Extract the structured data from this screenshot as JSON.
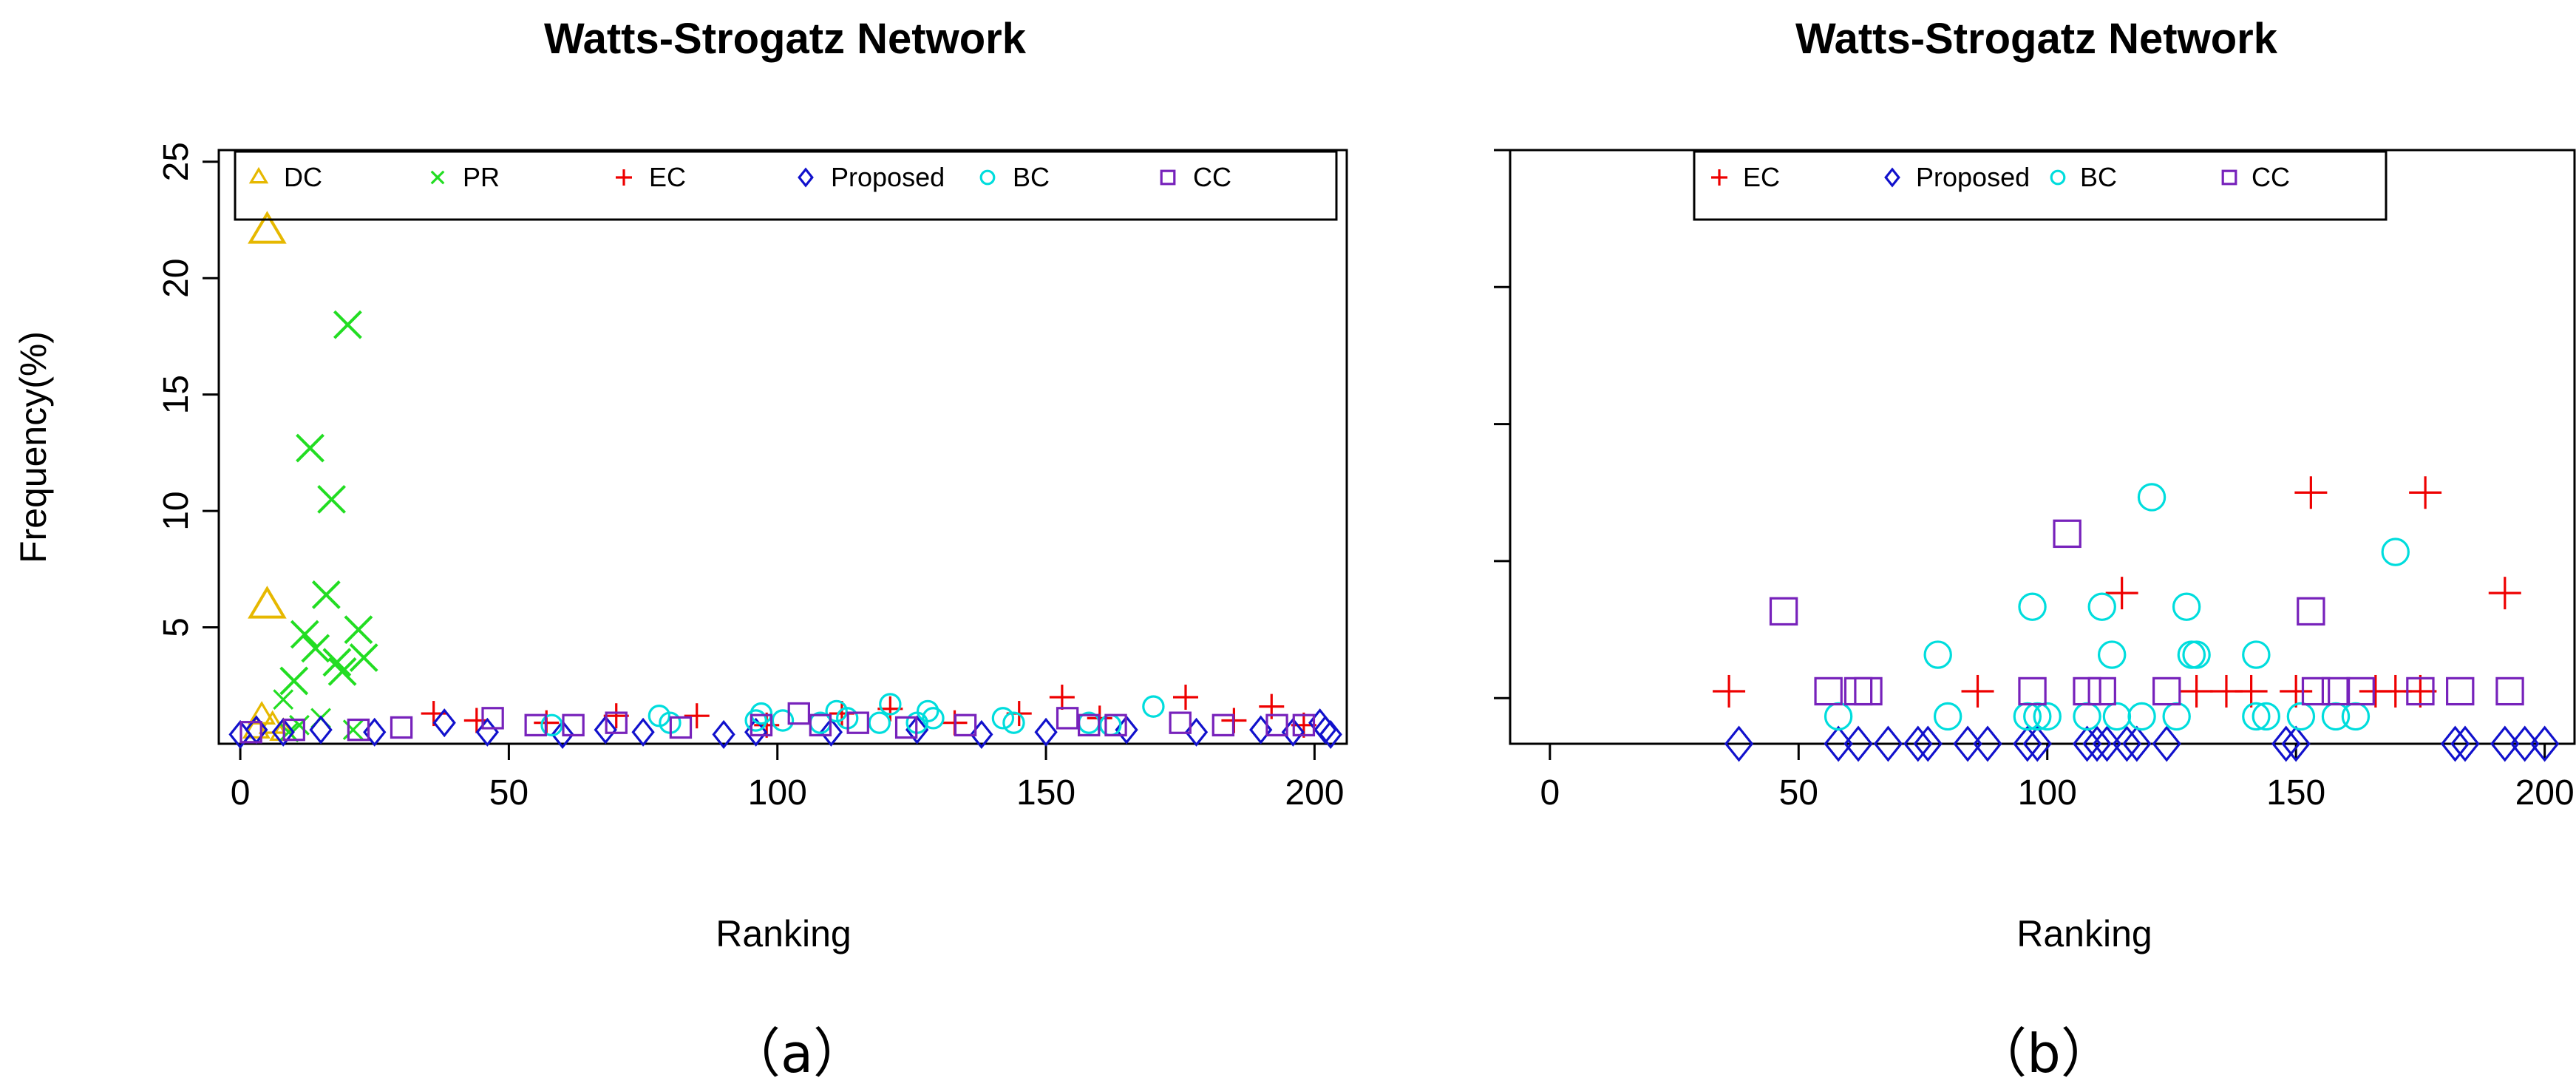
{
  "colors": {
    "DC": "#E6B800",
    "PR": "#22DD22",
    "EC": "#EE0000",
    "Proposed": "#1111CC",
    "BC": "#00DDDD",
    "CC": "#7722BB"
  },
  "chart_data": [
    {
      "type": "scatter",
      "title": "Watts-Strogatz Network",
      "xlabel": "Ranking",
      "ylabel": "Frequency(%)",
      "caption": "（a）",
      "xlim": [
        -4,
        206
      ],
      "ylim": [
        0,
        25.5
      ],
      "xticks": [
        0,
        50,
        100,
        150,
        200
      ],
      "yticks": [
        5,
        10,
        15,
        20,
        25
      ],
      "legend_position": "top",
      "legend": [
        "DC",
        "PR",
        "EC",
        "Proposed",
        "BC",
        "CC"
      ],
      "series": [
        {
          "name": "DC",
          "marker": "triangle",
          "x": [
            5,
            5,
            4,
            6,
            3,
            8
          ],
          "y": [
            22.0,
            5.9,
            1.2,
            0.8,
            0.6,
            0.5
          ]
        },
        {
          "name": "PR",
          "marker": "x",
          "x": [
            20,
            13,
            17,
            16,
            12,
            22,
            14,
            23,
            18,
            19,
            10,
            8,
            15,
            11,
            21,
            9
          ],
          "y": [
            18.0,
            12.7,
            10.5,
            6.4,
            4.7,
            4.9,
            4.1,
            3.7,
            3.5,
            3.1,
            2.7,
            1.9,
            1.1,
            0.8,
            0.6,
            0.5
          ]
        },
        {
          "name": "EC",
          "marker": "plus",
          "x": [
            36,
            44,
            57,
            70,
            85,
            98,
            112,
            121,
            133,
            145,
            153,
            160,
            176,
            185,
            192,
            198
          ],
          "y": [
            1.3,
            1.0,
            0.9,
            1.2,
            1.2,
            0.8,
            1.3,
            1.5,
            0.9,
            1.3,
            2.0,
            1.1,
            2.0,
            1.0,
            1.6,
            0.8
          ]
        },
        {
          "name": "Proposed",
          "marker": "diamond",
          "x": [
            0,
            3,
            8,
            15,
            25,
            38,
            46,
            60,
            68,
            75,
            90,
            96,
            110,
            126,
            138,
            150,
            165,
            178,
            190,
            196,
            201,
            202,
            203
          ],
          "y": [
            0.4,
            0.6,
            0.5,
            0.6,
            0.5,
            0.9,
            0.5,
            0.4,
            0.6,
            0.5,
            0.4,
            0.5,
            0.5,
            0.6,
            0.4,
            0.5,
            0.6,
            0.5,
            0.6,
            0.5,
            0.9,
            0.6,
            0.4
          ]
        },
        {
          "name": "BC",
          "marker": "circle",
          "x": [
            58,
            78,
            80,
            96,
            97,
            101,
            108,
            111,
            113,
            119,
            121,
            126,
            128,
            129,
            142,
            144,
            158,
            162,
            170
          ],
          "y": [
            0.8,
            1.2,
            0.9,
            1.0,
            1.3,
            1.0,
            0.9,
            1.4,
            1.1,
            0.9,
            1.7,
            0.9,
            1.4,
            1.1,
            1.1,
            0.9,
            0.9,
            0.8,
            1.6
          ]
        },
        {
          "name": "CC",
          "marker": "square",
          "x": [
            2,
            10,
            22,
            30,
            47,
            55,
            62,
            70,
            82,
            97,
            104,
            108,
            115,
            124,
            135,
            154,
            158,
            163,
            175,
            183,
            193,
            198
          ],
          "y": [
            0.5,
            0.6,
            0.6,
            0.7,
            1.1,
            0.8,
            0.8,
            0.9,
            0.7,
            0.8,
            1.3,
            0.8,
            0.9,
            0.7,
            0.8,
            1.1,
            0.8,
            0.8,
            0.9,
            0.8,
            0.8,
            0.8
          ]
        }
      ]
    },
    {
      "type": "scatter",
      "title": "Watts-Strogatz Network",
      "xlabel": "Ranking",
      "ylabel": "",
      "caption": "（b）",
      "xlim": [
        -8,
        206
      ],
      "ylim": [
        0,
        13
      ],
      "xticks": [
        0,
        50,
        100,
        150,
        200
      ],
      "yticks": [
        1,
        4,
        7,
        10,
        13
      ],
      "show_ytick_labels": false,
      "legend_position": "top",
      "legend": [
        "EC",
        "Proposed",
        "BC",
        "CC"
      ],
      "series": [
        {
          "name": "EC",
          "marker": "plus",
          "x": [
            36,
            86,
            115,
            130,
            136,
            141,
            150,
            153,
            166,
            170,
            175,
            176,
            192
          ],
          "y": [
            1.15,
            1.15,
            3.3,
            1.15,
            1.15,
            1.15,
            1.15,
            5.5,
            1.15,
            1.15,
            1.15,
            5.5,
            3.3
          ]
        },
        {
          "name": "Proposed",
          "marker": "diamond",
          "x": [
            38,
            58,
            62,
            68,
            74,
            76,
            84,
            88,
            96,
            98,
            108,
            110,
            112,
            116,
            118,
            124,
            148,
            150,
            182,
            184,
            192,
            196,
            200
          ],
          "y": [
            0,
            0,
            0,
            0,
            0,
            0,
            0,
            0,
            0,
            0,
            0,
            0,
            0,
            0,
            0,
            0,
            0,
            0,
            0,
            0,
            0,
            0,
            0
          ]
        },
        {
          "name": "BC",
          "marker": "circle",
          "x": [
            58,
            78,
            80,
            96,
            97,
            98,
            100,
            108,
            111,
            113,
            114,
            119,
            121,
            126,
            128,
            129,
            130,
            142,
            142,
            144,
            151,
            158,
            162,
            170
          ],
          "y": [
            0.6,
            1.95,
            0.6,
            0.6,
            3.0,
            0.6,
            0.6,
            0.6,
            3.0,
            1.95,
            0.6,
            0.6,
            5.4,
            0.6,
            3.0,
            1.95,
            1.95,
            0.6,
            1.95,
            0.6,
            0.6,
            0.6,
            0.6,
            4.2
          ]
        },
        {
          "name": "CC",
          "marker": "square",
          "x": [
            47,
            56,
            62,
            64,
            97,
            108,
            111,
            104,
            124,
            153,
            154,
            158,
            163,
            175,
            183,
            193
          ],
          "y": [
            2.9,
            1.15,
            1.15,
            1.15,
            1.15,
            1.15,
            1.15,
            4.6,
            1.15,
            2.9,
            1.15,
            1.15,
            1.15,
            1.15,
            1.15,
            1.15
          ]
        }
      ]
    }
  ]
}
